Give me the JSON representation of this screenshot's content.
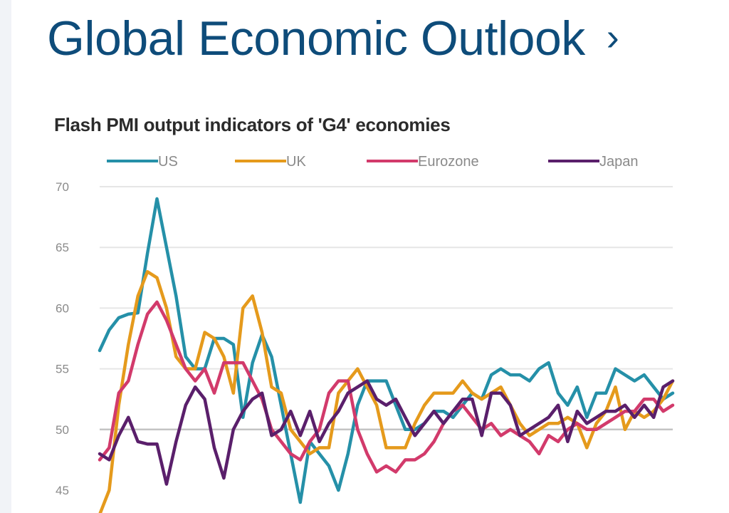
{
  "header": {
    "title": "Global Economic Outlook",
    "chevron": "›"
  },
  "chart_data": {
    "type": "line",
    "title": "Flash PMI output indicators of 'G4' economies",
    "xlabel": "",
    "ylabel": "",
    "ylim": [
      45,
      70
    ],
    "yticks": [
      45,
      50,
      55,
      60,
      65,
      70
    ],
    "grid": true,
    "legend_position": "top",
    "series": [
      {
        "name": "US",
        "color": "#2590a8",
        "values": [
          56.5,
          58.2,
          59.2,
          59.5,
          59.6,
          64.5,
          69,
          65,
          61,
          56,
          55,
          55,
          57.5,
          57.5,
          57,
          51,
          55.5,
          57.8,
          56,
          52,
          48,
          44,
          49,
          48,
          47,
          45,
          48,
          52,
          54,
          54,
          54,
          52,
          50,
          50,
          50.5,
          51.5,
          51.5,
          51,
          52,
          53,
          52.5,
          54.5,
          55,
          54.5,
          54.5,
          54,
          55,
          55.5,
          53,
          52,
          53.5,
          51,
          53,
          53,
          55,
          54.5,
          54,
          54.5,
          53.5,
          52.5,
          53
        ]
      },
      {
        "name": "UK",
        "color": "#e59a1c",
        "values": [
          43,
          45,
          52,
          57,
          61,
          63,
          62.5,
          60,
          56,
          55,
          55,
          58,
          57.5,
          56,
          53,
          60,
          61,
          58,
          53.5,
          53,
          50,
          49,
          48,
          48.5,
          48.5,
          53,
          54,
          55,
          53.5,
          52,
          48.5,
          48.5,
          48.5,
          50.5,
          52,
          53,
          53,
          53,
          54,
          53,
          52.5,
          53,
          53.5,
          52,
          50.5,
          49.5,
          50,
          50.5,
          50.5,
          51,
          50.5,
          48.5,
          50.5,
          51.5,
          53.5,
          50,
          51.5,
          51,
          51.5,
          52.5,
          54
        ]
      },
      {
        "name": "Eurozone",
        "color": "#d23a6b",
        "values": [
          47.5,
          48.5,
          53,
          54,
          57,
          59.5,
          60.5,
          59,
          57,
          55,
          54,
          55,
          53,
          55.5,
          55.5,
          55.5,
          54,
          52.5,
          50,
          49,
          48,
          47.5,
          49,
          50,
          53,
          54,
          54,
          50,
          48,
          46.5,
          47,
          46.5,
          47.5,
          47.5,
          48,
          49,
          50.5,
          51.5,
          52,
          51,
          50,
          50.5,
          49.5,
          50,
          49.5,
          49,
          48,
          49.5,
          49,
          50,
          50.5,
          50,
          50,
          50.5,
          51,
          51.5,
          51.5,
          52.5,
          52.5,
          51.5,
          52
        ]
      },
      {
        "name": "Japan",
        "color": "#5a1f6b",
        "values": [
          48,
          47.5,
          49.5,
          51,
          49,
          48.8,
          48.8,
          45.5,
          49,
          52,
          53.5,
          52.5,
          48.5,
          46,
          50,
          51.5,
          52.5,
          53,
          49.5,
          50,
          51.5,
          49.5,
          51.5,
          49,
          50.5,
          51.5,
          53,
          53.5,
          54,
          52.5,
          52,
          52.5,
          51,
          49.5,
          50.5,
          51.5,
          50.5,
          51.5,
          52.5,
          52.5,
          49.5,
          53,
          53,
          52,
          49.5,
          50,
          50.5,
          51,
          52,
          49,
          51.5,
          50.5,
          51,
          51.5,
          51.5,
          52,
          51,
          52,
          51,
          53.5,
          54
        ]
      }
    ]
  }
}
